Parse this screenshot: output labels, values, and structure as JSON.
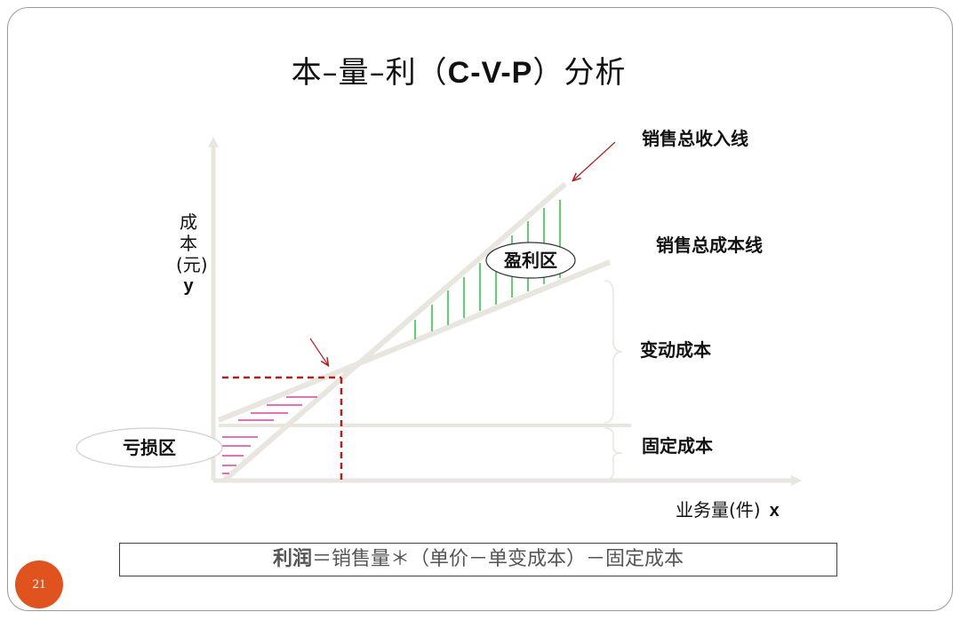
{
  "title": {
    "prefix": "本–量–利（",
    "bold": "C-V-P",
    "suffix": "）分析"
  },
  "axes": {
    "y_label_lines": [
      "成",
      "本",
      "(元)"
    ],
    "y_var": "y",
    "x_label": "业务量(件)",
    "x_var": "x"
  },
  "lines": {
    "revenue_label": "销售总收入线",
    "total_cost_label": "销售总成本线"
  },
  "regions": {
    "profit": "盈利区",
    "loss": "亏损区",
    "variable_cost": "变动成本",
    "fixed_cost": "固定成本"
  },
  "formula": {
    "lead": "利润",
    "rest": "＝销售量＊（单价－单变成本）－固定成本"
  },
  "page_number": "21",
  "colors": {
    "axis": "#e8e6df",
    "break_even": "#b01e1e",
    "profit_hatch": "#2fbf3f",
    "loss_hatch": "#e0409a",
    "badge": "#e0521e"
  }
}
